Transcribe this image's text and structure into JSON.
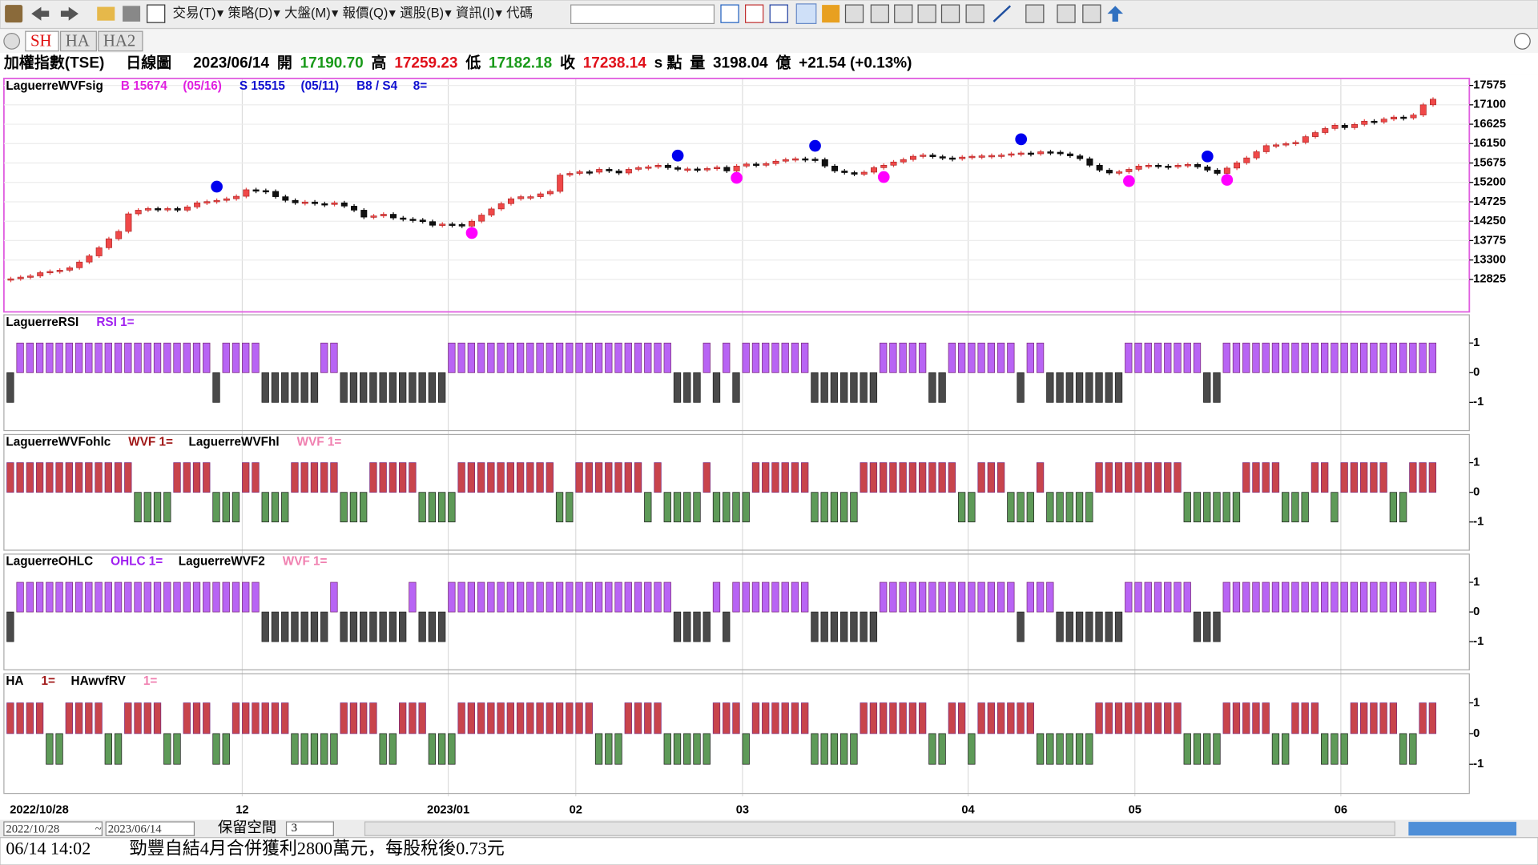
{
  "toolbar": {
    "menus": [
      "交易(T)",
      "策略(D)",
      "大盤(M)",
      "報價(Q)",
      "選股(B)",
      "資訊(I)",
      "代碼"
    ]
  },
  "tabs": [
    "SH",
    "HA",
    "HA2"
  ],
  "info": [
    {
      "text": "加權指數(TSE)",
      "color": "#000000"
    },
    {
      "text": "日線圖",
      "color": "#000000"
    },
    {
      "text": "2023/06/14",
      "color": "#000000"
    },
    {
      "text": "開",
      "color": "#000000"
    },
    {
      "text": "17190.70",
      "color": "#1a9a1a"
    },
    {
      "text": "高",
      "color": "#000000"
    },
    {
      "text": "17259.23",
      "color": "#e0101a"
    },
    {
      "text": "低",
      "color": "#000000"
    },
    {
      "text": "17182.18",
      "color": "#1a9a1a"
    },
    {
      "text": "收",
      "color": "#000000"
    },
    {
      "text": "17238.14",
      "color": "#e0101a"
    },
    {
      "text": "s 點",
      "color": "#000000"
    },
    {
      "text": "量",
      "color": "#000000"
    },
    {
      "text": "3198.04",
      "color": "#000000"
    },
    {
      "text": "億",
      "color": "#000000"
    },
    {
      "text": "+21.54 (+0.13%)",
      "color": "#000000"
    }
  ],
  "chart_data": [
    {
      "type": "candlestick",
      "legend": [
        {
          "text": "LaguerreWVFsig",
          "color": "#000000"
        },
        {
          "text": "B 15674",
          "color": "#e020e0"
        },
        {
          "text": "(05/16)",
          "color": "#e020e0"
        },
        {
          "text": "S 15515",
          "color": "#1010d0"
        },
        {
          "text": "(05/11)",
          "color": "#1010d0"
        },
        {
          "text": "B8 / S4",
          "color": "#1010d0"
        },
        {
          "text": "8=",
          "color": "#1010d0"
        }
      ],
      "values": [
        12840,
        12880,
        12910,
        12990,
        13020,
        13050,
        13110,
        13250,
        13400,
        13600,
        13820,
        14000,
        14430,
        14520,
        14560,
        14540,
        14560,
        14520,
        14600,
        14700,
        14730,
        14760,
        14800,
        14860,
        15020,
        15000,
        14980,
        14850,
        14760,
        14700,
        14720,
        14680,
        14660,
        14700,
        14620,
        14520,
        14350,
        14380,
        14420,
        14330,
        14300,
        14280,
        14240,
        14150,
        14180,
        14170,
        14130,
        14250,
        14400,
        14550,
        14680,
        14800,
        14850,
        14850,
        14920,
        14980,
        15380,
        15420,
        15460,
        15450,
        15520,
        15480,
        15430,
        15520,
        15560,
        15580,
        15620,
        15560,
        15520,
        15530,
        15520,
        15540,
        15570,
        15480,
        15600,
        15650,
        15620,
        15660,
        15720,
        15760,
        15780,
        15770,
        15760,
        15600,
        15480,
        15440,
        15400,
        15450,
        15560,
        15620,
        15700,
        15760,
        15840,
        15870,
        15830,
        15800,
        15780,
        15820,
        15840,
        15850,
        15860,
        15870,
        15900,
        15920,
        15900,
        15950,
        15940,
        15900,
        15850,
        15780,
        15620,
        15500,
        15430,
        15460,
        15520,
        15600,
        15620,
        15600,
        15580,
        15620,
        15640,
        15580,
        15500,
        15420,
        15550,
        15680,
        15800,
        15950,
        16100,
        16120,
        16150,
        16180,
        16320,
        16420,
        16520,
        16600,
        16540,
        16620,
        16700,
        16680,
        16750,
        16800,
        16780,
        16850,
        17100,
        17238
      ],
      "up_color": "#f04848",
      "down_color": "#111111",
      "buy_signals": [
        47,
        74,
        89,
        114,
        124
      ],
      "buy_color": "#ff00ff",
      "sell_signals": [
        21,
        68,
        82,
        103,
        122
      ],
      "sell_color": "#0000ee",
      "ylim": [
        12030,
        17745
      ],
      "yticks": [
        17575,
        17100,
        16625,
        16150,
        15675,
        15200,
        14725,
        14250,
        13775,
        13300,
        12825
      ],
      "x_labels": [
        {
          "index": 0,
          "label": "2022/10/28"
        },
        {
          "index": 24,
          "label": "12"
        },
        {
          "index": 45,
          "label": "2023/01"
        },
        {
          "index": 58,
          "label": "02"
        },
        {
          "index": 75,
          "label": "03"
        },
        {
          "index": 98,
          "label": "04"
        },
        {
          "index": 115,
          "label": "05"
        },
        {
          "index": 136,
          "label": "06"
        }
      ]
    },
    {
      "type": "signal",
      "legend": [
        {
          "text": "LaguerreRSI",
          "color": "#000000"
        },
        {
          "text": "RSI 1=",
          "color": "#a020f0"
        }
      ],
      "values": [
        -1,
        1,
        1,
        1,
        1,
        1,
        1,
        1,
        1,
        1,
        1,
        1,
        1,
        1,
        1,
        1,
        1,
        1,
        1,
        1,
        1,
        -1,
        1,
        1,
        1,
        1,
        -1,
        -1,
        -1,
        -1,
        -1,
        -1,
        1,
        1,
        -1,
        -1,
        -1,
        -1,
        -1,
        -1,
        -1,
        -1,
        -1,
        -1,
        -1,
        1,
        1,
        1,
        1,
        1,
        1,
        1,
        1,
        1,
        1,
        1,
        1,
        1,
        1,
        1,
        1,
        1,
        1,
        1,
        1,
        1,
        1,
        1,
        -1,
        -1,
        -1,
        1,
        -1,
        1,
        -1,
        1,
        1,
        1,
        1,
        1,
        1,
        1,
        -1,
        -1,
        -1,
        -1,
        -1,
        -1,
        -1,
        1,
        1,
        1,
        1,
        1,
        -1,
        -1,
        1,
        1,
        1,
        1,
        1,
        1,
        1,
        -1,
        1,
        1,
        -1,
        -1,
        -1,
        -1,
        -1,
        -1,
        -1,
        -1,
        1,
        1,
        1,
        1,
        1,
        1,
        1,
        1,
        -1,
        -1,
        1,
        1,
        1,
        1,
        1,
        1,
        1,
        1,
        1,
        1,
        1,
        1,
        1,
        1,
        1,
        1,
        1,
        1,
        1,
        1,
        1,
        1
      ],
      "up_color": "#b864f4",
      "down_color": "#4a4a4a",
      "ylim": [
        -1.95,
        1.95
      ],
      "yticks": [
        1,
        0,
        -1
      ]
    },
    {
      "type": "signal",
      "legend": [
        {
          "text": "LaguerreWVFohlc",
          "color": "#000000"
        },
        {
          "text": "WVF 1=",
          "color": "#a01818"
        },
        {
          "text": "LaguerreWVFhl",
          "color": "#000000"
        },
        {
          "text": "WVF 1=",
          "color": "#f080b0"
        }
      ],
      "values": [
        1,
        1,
        1,
        1,
        1,
        1,
        1,
        1,
        1,
        1,
        1,
        1,
        1,
        -1,
        -1,
        -1,
        -1,
        1,
        1,
        1,
        1,
        -1,
        -1,
        -1,
        1,
        1,
        -1,
        -1,
        -1,
        1,
        1,
        1,
        1,
        1,
        -1,
        -1,
        -1,
        1,
        1,
        1,
        1,
        1,
        -1,
        -1,
        -1,
        -1,
        1,
        1,
        1,
        1,
        1,
        1,
        1,
        1,
        1,
        1,
        -1,
        -1,
        1,
        1,
        1,
        1,
        1,
        1,
        1,
        -1,
        1,
        -1,
        -1,
        -1,
        -1,
        1,
        -1,
        -1,
        -1,
        -1,
        1,
        1,
        1,
        1,
        1,
        1,
        -1,
        -1,
        -1,
        -1,
        -1,
        1,
        1,
        1,
        1,
        1,
        1,
        1,
        1,
        1,
        1,
        -1,
        -1,
        1,
        1,
        1,
        -1,
        -1,
        -1,
        1,
        -1,
        -1,
        -1,
        -1,
        -1,
        1,
        1,
        1,
        1,
        1,
        1,
        1,
        1,
        1,
        -1,
        -1,
        -1,
        -1,
        -1,
        -1,
        1,
        1,
        1,
        1,
        -1,
        -1,
        -1,
        1,
        1,
        -1,
        1,
        1,
        1,
        1,
        1,
        -1,
        -1,
        1,
        1,
        1
      ],
      "up_color": "#c8444c",
      "down_color": "#5e9a58",
      "ylim": [
        -1.95,
        1.95
      ],
      "yticks": [
        1,
        0,
        -1
      ]
    },
    {
      "type": "signal",
      "legend": [
        {
          "text": "LaguerreOHLC",
          "color": "#000000"
        },
        {
          "text": "OHLC 1=",
          "color": "#a020f0"
        },
        {
          "text": "LaguerreWVF2",
          "color": "#000000"
        },
        {
          "text": "WVF 1=",
          "color": "#f080b0"
        }
      ],
      "values": [
        -1,
        1,
        1,
        1,
        1,
        1,
        1,
        1,
        1,
        1,
        1,
        1,
        1,
        1,
        1,
        1,
        1,
        1,
        1,
        1,
        1,
        1,
        1,
        1,
        1,
        1,
        -1,
        -1,
        -1,
        -1,
        -1,
        -1,
        -1,
        1,
        -1,
        -1,
        -1,
        -1,
        -1,
        -1,
        -1,
        1,
        -1,
        -1,
        -1,
        1,
        1,
        1,
        1,
        1,
        1,
        1,
        1,
        1,
        1,
        1,
        1,
        1,
        1,
        1,
        1,
        1,
        1,
        1,
        1,
        1,
        1,
        1,
        -1,
        -1,
        -1,
        -1,
        1,
        -1,
        1,
        1,
        1,
        1,
        1,
        1,
        1,
        1,
        -1,
        -1,
        -1,
        -1,
        -1,
        -1,
        -1,
        1,
        1,
        1,
        1,
        1,
        1,
        1,
        1,
        1,
        1,
        1,
        1,
        1,
        1,
        -1,
        1,
        1,
        1,
        -1,
        -1,
        -1,
        -1,
        -1,
        -1,
        -1,
        1,
        1,
        1,
        1,
        1,
        1,
        1,
        -1,
        -1,
        -1,
        1,
        1,
        1,
        1,
        1,
        1,
        1,
        1,
        1,
        1,
        1,
        1,
        1,
        1,
        1,
        1,
        1,
        1,
        1,
        1,
        1,
        1
      ],
      "up_color": "#b864f4",
      "down_color": "#4a4a4a",
      "ylim": [
        -1.95,
        1.95
      ],
      "yticks": [
        1,
        0,
        -1
      ]
    },
    {
      "type": "signal",
      "legend": [
        {
          "text": "HA",
          "color": "#000000"
        },
        {
          "text": "1=",
          "color": "#a01818"
        },
        {
          "text": "HAwvfRV",
          "color": "#000000"
        },
        {
          "text": "1=",
          "color": "#f080b0"
        }
      ],
      "values": [
        1,
        1,
        1,
        1,
        -1,
        -1,
        1,
        1,
        1,
        1,
        -1,
        -1,
        1,
        1,
        1,
        1,
        -1,
        -1,
        1,
        1,
        1,
        -1,
        -1,
        1,
        1,
        1,
        1,
        1,
        1,
        -1,
        -1,
        -1,
        -1,
        -1,
        1,
        1,
        1,
        1,
        -1,
        -1,
        1,
        1,
        1,
        -1,
        -1,
        -1,
        1,
        1,
        1,
        1,
        1,
        1,
        1,
        1,
        1,
        1,
        1,
        1,
        1,
        1,
        -1,
        -1,
        -1,
        1,
        1,
        1,
        1,
        -1,
        -1,
        -1,
        -1,
        -1,
        1,
        1,
        1,
        -1,
        1,
        1,
        1,
        1,
        1,
        1,
        -1,
        -1,
        -1,
        -1,
        -1,
        1,
        1,
        1,
        1,
        1,
        1,
        1,
        -1,
        -1,
        1,
        1,
        -1,
        1,
        1,
        1,
        1,
        1,
        1,
        -1,
        -1,
        -1,
        -1,
        -1,
        -1,
        1,
        1,
        1,
        1,
        1,
        1,
        1,
        1,
        1,
        -1,
        -1,
        -1,
        -1,
        1,
        1,
        1,
        1,
        1,
        -1,
        -1,
        1,
        1,
        1,
        -1,
        -1,
        -1,
        1,
        1,
        1,
        1,
        1,
        -1,
        -1,
        1,
        1
      ],
      "up_color": "#c8444c",
      "down_color": "#5e9a58",
      "ylim": [
        -1.95,
        1.95
      ],
      "yticks": [
        1,
        0,
        -1
      ]
    }
  ],
  "date_range": {
    "from": "2022/10/28",
    "sep": "~",
    "to": "2023/06/14",
    "reserve_label": "保留空間",
    "reserve_value": "3"
  },
  "status": {
    "time": "06/14 14:02",
    "message": "勁豐自結4月合併獲利2800萬元，每股稅後0.73元"
  }
}
